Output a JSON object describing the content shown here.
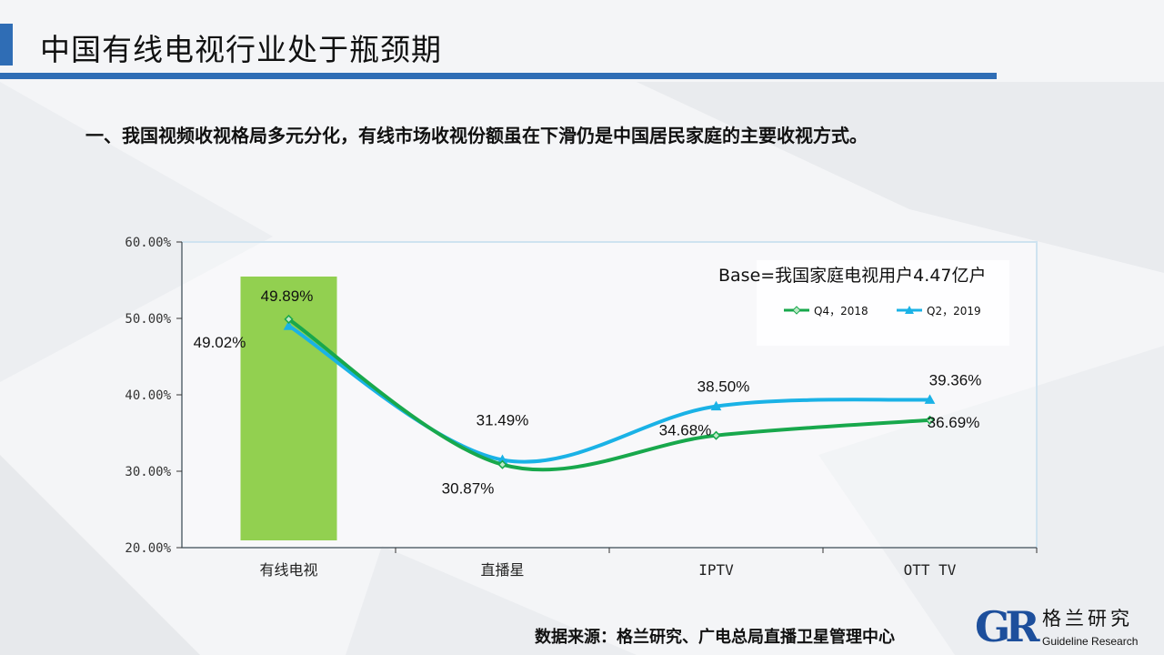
{
  "header": {
    "title": "中国有线电视行业处于瓶颈期",
    "subtitle": "一、我国视频收视格局多元分化，有线市场收视份额虽在下滑仍是中国居民家庭的主要收视方式。"
  },
  "footer": {
    "source": "数据来源：格兰研究、广电总局直播卫星管理中心",
    "logo_mark": "GR",
    "logo_cn": "格兰研究",
    "logo_en": "Guideline Research"
  },
  "colors": {
    "accent": "#2f6db5",
    "bar": "#92d050",
    "q4_2018": "#18a84c",
    "q2_2019": "#1ab2e6"
  },
  "chart_data": {
    "type": "line",
    "note": "Base=我国家庭电视用户4.47亿户",
    "categories": [
      "有线电视",
      "直播星",
      "IPTV",
      "OTT TV"
    ],
    "series": [
      {
        "name": "Q4，2018",
        "values": [
          49.89,
          30.87,
          34.68,
          36.69
        ],
        "labels": [
          "49.89%",
          "30.87%",
          "34.68%",
          "36.69%"
        ],
        "color": "#18a84c",
        "marker": "diamond"
      },
      {
        "name": "Q2，2019",
        "values": [
          49.02,
          31.49,
          38.5,
          39.36
        ],
        "labels": [
          "49.02%",
          "31.49%",
          "38.50%",
          "39.36%"
        ],
        "color": "#1ab2e6",
        "marker": "triangle"
      }
    ],
    "highlight_bar": {
      "category": "有线电视"
    },
    "yticks": [
      "20.00%",
      "30.00%",
      "40.00%",
      "50.00%",
      "60.00%"
    ],
    "ylim": [
      20,
      60
    ],
    "grid": false,
    "legend_position": "top-right"
  }
}
